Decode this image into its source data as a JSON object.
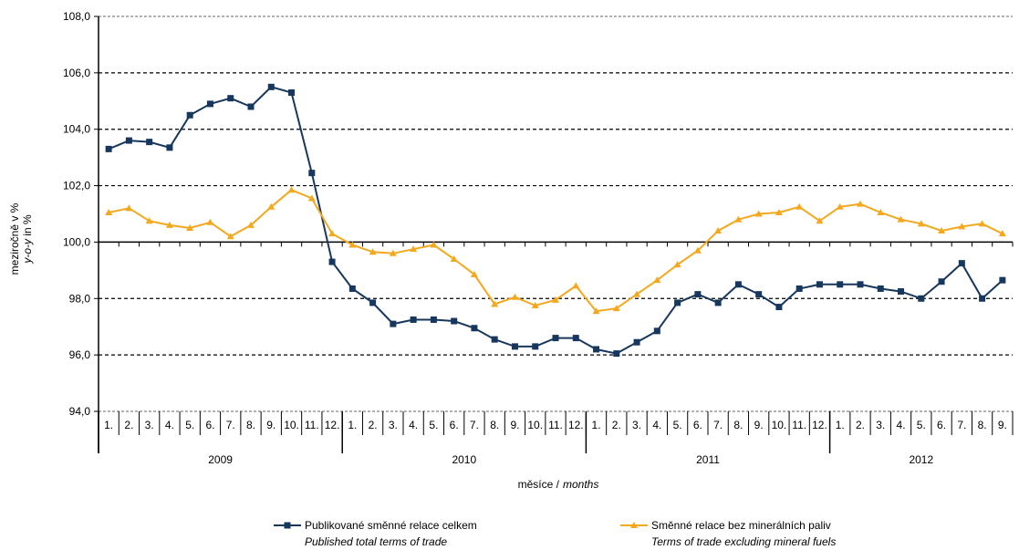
{
  "chart_data": {
    "type": "line",
    "title": "",
    "xlabel": "měsíce / months",
    "xlabel_cz": "měsíce /",
    "xlabel_en": "months",
    "ylabel_cz": "meziročně v %",
    "ylabel_en_prefix": "y-o-y",
    "ylabel_en_suffix": " in %",
    "ylim": [
      94,
      108
    ],
    "yticks": [
      "94,0",
      "96,0",
      "98,0",
      "100,0",
      "102,0",
      "104,0",
      "106,0",
      "108,0"
    ],
    "ytick_values": [
      94,
      96,
      98,
      100,
      102,
      104,
      106,
      108
    ],
    "grid": "horizontal-dashed",
    "legend_position": "bottom",
    "months": [
      "1.",
      "2.",
      "3.",
      "4.",
      "5.",
      "6.",
      "7.",
      "8.",
      "9.",
      "10.",
      "11.",
      "12.",
      "1.",
      "2.",
      "3.",
      "4.",
      "5.",
      "6.",
      "7.",
      "8.",
      "9.",
      "10.",
      "11.",
      "12.",
      "1.",
      "2.",
      "3.",
      "4.",
      "5.",
      "6.",
      "7.",
      "8.",
      "9.",
      "10.",
      "11.",
      "12.",
      "1.",
      "2.",
      "3.",
      "4.",
      "5.",
      "6.",
      "7.",
      "8.",
      "9."
    ],
    "years": [
      {
        "label": "2009",
        "count": 12
      },
      {
        "label": "2010",
        "count": 12
      },
      {
        "label": "2011",
        "count": 12
      },
      {
        "label": "2012",
        "count": 9
      }
    ],
    "series": [
      {
        "name": "Publikované směnné relace celkem",
        "name_en": "Published total terms of trade",
        "color": "#17375e",
        "marker": "square",
        "values": [
          103.3,
          103.6,
          103.55,
          103.35,
          104.5,
          104.9,
          105.1,
          104.8,
          105.5,
          105.3,
          102.45,
          99.3,
          98.35,
          97.85,
          97.1,
          97.25,
          97.25,
          97.2,
          96.95,
          96.55,
          96.3,
          96.3,
          96.6,
          96.6,
          96.2,
          96.05,
          96.45,
          96.85,
          97.85,
          98.15,
          97.85,
          98.5,
          98.15,
          97.7,
          98.35,
          98.5,
          98.5,
          98.5,
          98.35,
          98.25,
          98.0,
          98.6,
          99.25,
          98.0,
          98.65
        ]
      },
      {
        "name": "Směnné relace bez minerálních paliv",
        "name_en": "Terms of trade excluding mineral fuels",
        "color": "#f4a81d",
        "marker": "triangle",
        "values": [
          101.05,
          101.2,
          100.75,
          100.6,
          100.5,
          100.7,
          100.2,
          100.6,
          101.25,
          101.85,
          101.55,
          100.3,
          99.9,
          99.65,
          99.6,
          99.75,
          99.9,
          99.4,
          98.85,
          97.8,
          98.05,
          97.75,
          97.95,
          98.45,
          97.55,
          97.65,
          98.15,
          98.65,
          99.2,
          99.7,
          100.4,
          100.8,
          101.0,
          101.05,
          101.25,
          100.75,
          101.25,
          101.35,
          101.05,
          100.8,
          100.65,
          100.4,
          100.55,
          100.65,
          100.3
        ]
      }
    ]
  }
}
